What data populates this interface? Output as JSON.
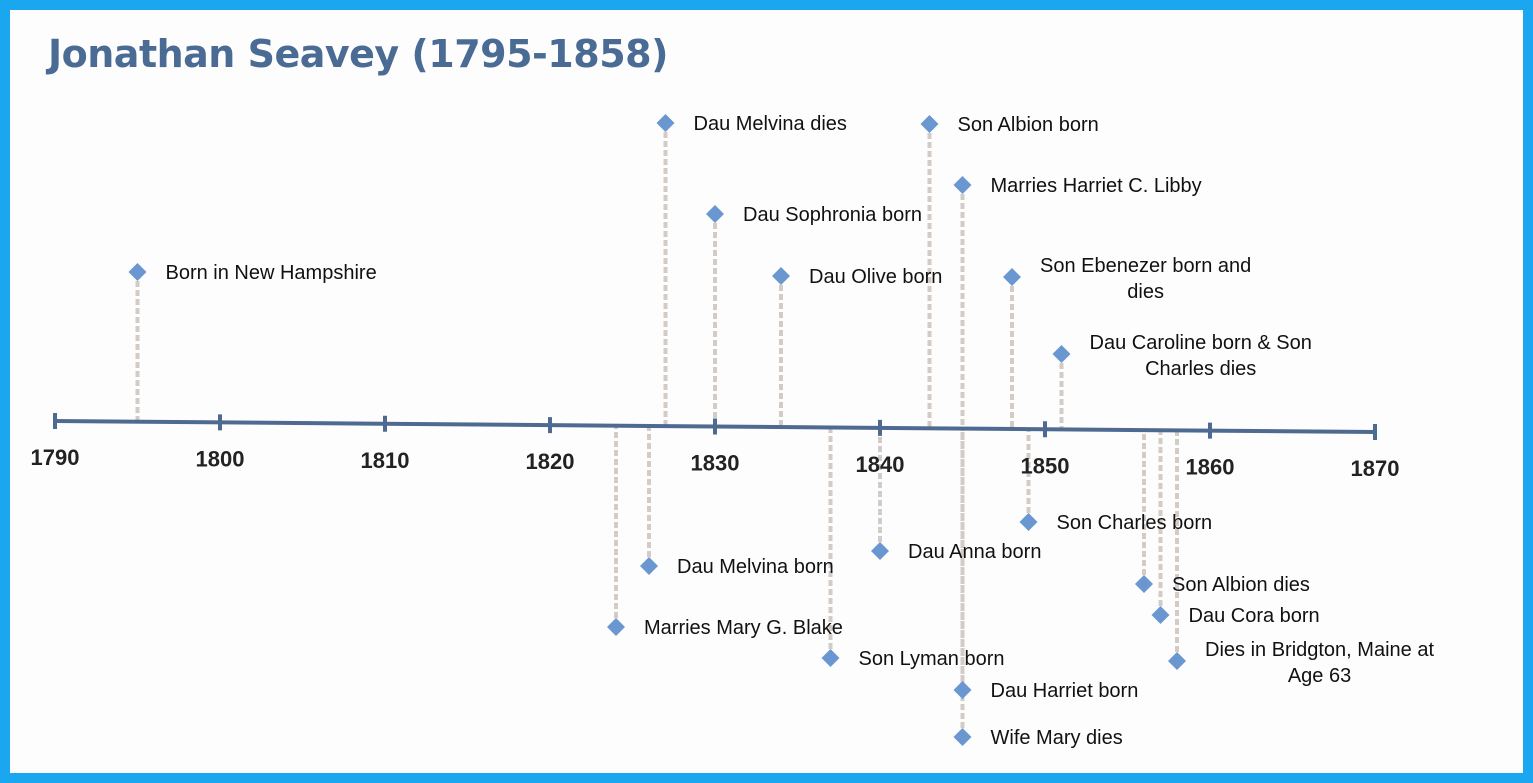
{
  "title": "Jonathan Seavey (1795-1858)",
  "colors": {
    "frame": "#1aa7ef",
    "axis": "#4f6a90",
    "marker": "#6a97cf",
    "stem": "#d2cbc6",
    "title": "#4a6b94"
  },
  "axis": {
    "start_year": 1790,
    "end_year": 1870,
    "ticks": [
      "1790",
      "1800",
      "1810",
      "1820",
      "1830",
      "1840",
      "1850",
      "1860",
      "1870"
    ]
  },
  "events": [
    {
      "year": 1795,
      "side": "above",
      "lines": [
        "Born in New Hampshire"
      ]
    },
    {
      "year": 1824,
      "side": "below",
      "lines": [
        "Marries Mary G. Blake"
      ]
    },
    {
      "year": 1826,
      "side": "below",
      "lines": [
        "Dau Melvina born"
      ]
    },
    {
      "year": 1827,
      "side": "above",
      "lines": [
        "Dau Melvina dies"
      ]
    },
    {
      "year": 1830,
      "side": "above",
      "lines": [
        "Dau Sophronia born"
      ]
    },
    {
      "year": 1834,
      "side": "above",
      "lines": [
        "Dau Olive born"
      ]
    },
    {
      "year": 1837,
      "side": "below",
      "lines": [
        "Son Lyman born"
      ]
    },
    {
      "year": 1840,
      "side": "below",
      "lines": [
        "Dau Anna born"
      ]
    },
    {
      "year": 1843,
      "side": "above",
      "lines": [
        "Son Albion born"
      ]
    },
    {
      "year": 1845,
      "side": "above",
      "lines": [
        "Marries Harriet C. Libby"
      ]
    },
    {
      "year": 1845,
      "side": "below",
      "lines": [
        "Dau Harriet born"
      ]
    },
    {
      "year": 1845,
      "side": "below",
      "lines": [
        "Wife Mary dies"
      ]
    },
    {
      "year": 1848,
      "side": "above",
      "lines": [
        "Son Ebenezer born and",
        "dies"
      ]
    },
    {
      "year": 1849,
      "side": "below",
      "lines": [
        "Son Charles born"
      ]
    },
    {
      "year": 1851,
      "side": "above",
      "lines": [
        "Dau Caroline born & Son",
        "Charles dies"
      ]
    },
    {
      "year": 1856,
      "side": "below",
      "lines": [
        "Son Albion dies"
      ]
    },
    {
      "year": 1857,
      "side": "below",
      "lines": [
        "Dau Cora born"
      ]
    },
    {
      "year": 1858,
      "side": "below",
      "lines": [
        "Dies in Bridgton, Maine at",
        "Age 63"
      ]
    }
  ]
}
